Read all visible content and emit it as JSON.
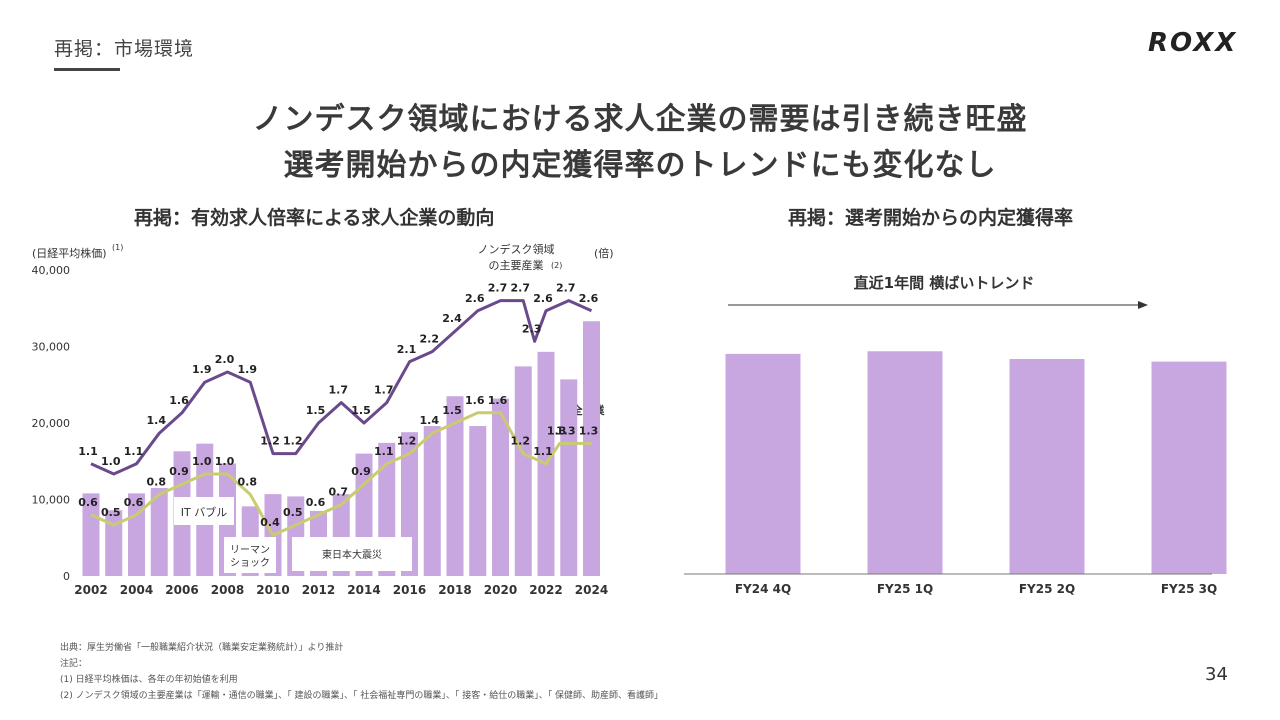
{
  "header": {
    "section_label": "再掲：市場環境",
    "logo": "ROXX",
    "headline_1": "ノンデスク領域における求人企業の需要は引き続き旺盛",
    "headline_2": "選考開始からの内定獲得率のトレンドにも変化なし"
  },
  "left_chart": {
    "title": "再掲：有効求人倍率による求人企業の動向",
    "left_axis_label": "(日経平均株価)",
    "left_axis_note": "(1)",
    "right_axis_label": "(倍)",
    "nondesk_label_1": "ノンデスク領域",
    "nondesk_label_2": "の主要産業",
    "nondesk_note": "(2)",
    "all_industry_label": "全産業",
    "annotations": [
      "IT バブル",
      "リーマン",
      "ショック",
      "東日本大震災"
    ]
  },
  "right_chart": {
    "title": "再掲：選考開始からの内定獲得率",
    "trend_label": "直近1年間 横ばいトレンド"
  },
  "chart_data": [
    {
      "type": "bar",
      "title": "再掲：有効求人倍率による求人企業の動向",
      "x": [
        2002,
        2003,
        2004,
        2005,
        2006,
        2007,
        2008,
        2009,
        2010,
        2011,
        2012,
        2013,
        2014,
        2015,
        2016,
        2017,
        2018,
        2019,
        2020,
        2021,
        2022,
        2023,
        2024
      ],
      "x_tick_labels": [
        "2002",
        "2004",
        "2006",
        "2008",
        "2010",
        "2012",
        "2014",
        "2016",
        "2018",
        "2020",
        "2022",
        "2024"
      ],
      "y_ticks": [
        "0",
        "10,000",
        "20,000",
        "30,000",
        "40,000"
      ],
      "ylim": [
        0,
        40000
      ],
      "y2lim": [
        0,
        3.0
      ],
      "series": [
        {
          "name": "日経平均株価",
          "kind": "bar",
          "axis": "left",
          "color": "#c8a6e0",
          "values": [
            10800,
            8600,
            10800,
            11500,
            16300,
            17300,
            14700,
            9100,
            10700,
            10400,
            8500,
            10700,
            16000,
            17400,
            18800,
            19600,
            23500,
            19600,
            23200,
            27400,
            29300,
            25700,
            33300
          ]
        },
        {
          "name": "ノンデスク領域の主要産業",
          "kind": "line",
          "axis": "right",
          "color": "#6b4a8c",
          "values": [
            1.1,
            1.0,
            1.1,
            1.4,
            1.6,
            1.9,
            2.0,
            1.9,
            1.2,
            1.2,
            1.5,
            1.7,
            1.5,
            1.7,
            2.1,
            2.2,
            2.4,
            2.6,
            2.7,
            2.7,
            2.3,
            2.6,
            2.7,
            2.6
          ],
          "x": [
            2002,
            2003,
            2004,
            2005,
            2006,
            2007,
            2008,
            2009,
            2010,
            2011,
            2012,
            2013,
            2014,
            2015,
            2016,
            2017,
            2018,
            2019,
            2020,
            2021,
            2021.5,
            2022,
            2023,
            2024
          ],
          "labels": [
            "1.1",
            "1.0",
            "1.1",
            "1.4",
            "1.6",
            "1.9",
            "2.0",
            "1.9",
            "1.2",
            "1.2",
            "1.5",
            "1.7",
            "1.5",
            "1.7",
            "2.1",
            "2.2",
            "2.4",
            "2.6",
            "2.7",
            "2.7",
            "2.3",
            "2.6",
            "2.7",
            "2.6"
          ]
        },
        {
          "name": "全産業",
          "kind": "line",
          "axis": "right",
          "color": "#c9cc6e",
          "values": [
            0.6,
            0.5,
            0.6,
            0.8,
            0.9,
            1.0,
            1.0,
            0.8,
            0.4,
            0.5,
            0.6,
            0.7,
            0.9,
            1.1,
            1.2,
            1.4,
            1.5,
            1.6,
            1.6,
            1.2,
            1.1,
            1.3,
            1.3,
            1.3
          ],
          "x": [
            2002,
            2003,
            2004,
            2005,
            2006,
            2007,
            2008,
            2009,
            2010,
            2011,
            2012,
            2013,
            2014,
            2015,
            2016,
            2017,
            2018,
            2019,
            2020,
            2021,
            2022,
            2022.6,
            2023,
            2024
          ],
          "labels": [
            "0.6",
            "0.5",
            "0.6",
            "0.8",
            "0.9",
            "1.0",
            "1.0",
            "0.8",
            "0.4",
            "0.5",
            "0.6",
            "0.7",
            "0.9",
            "1.1",
            "1.2",
            "1.4",
            "1.5",
            "1.6",
            "1.6",
            "1.2",
            "1.1",
            "1.3",
            "1.3",
            "1.3"
          ]
        }
      ]
    },
    {
      "type": "bar",
      "title": "再掲：選考開始からの内定獲得率",
      "categories": [
        "FY24 4Q",
        "FY25 1Q",
        "FY25 2Q",
        "FY25 3Q"
      ],
      "values": [
        0.85,
        0.86,
        0.83,
        0.82
      ],
      "value_unit": "relative bar height",
      "color": "#c8a6e0"
    }
  ],
  "footnotes": [
    "出典：厚生労働省「一般職業紹介状況（職業安定業務統計）」より推計",
    "注記：",
    "(1) 日経平均株価は、各年の年初始値を利用",
    "(2) ノンデスク領域の主要産業は「運輸・通信の職業」、「 建設の職業」、「 社会福祉専門の職業」、「 接客・給仕の職業」、「 保健師、助産師、看護師」"
  ],
  "page_number": "34"
}
